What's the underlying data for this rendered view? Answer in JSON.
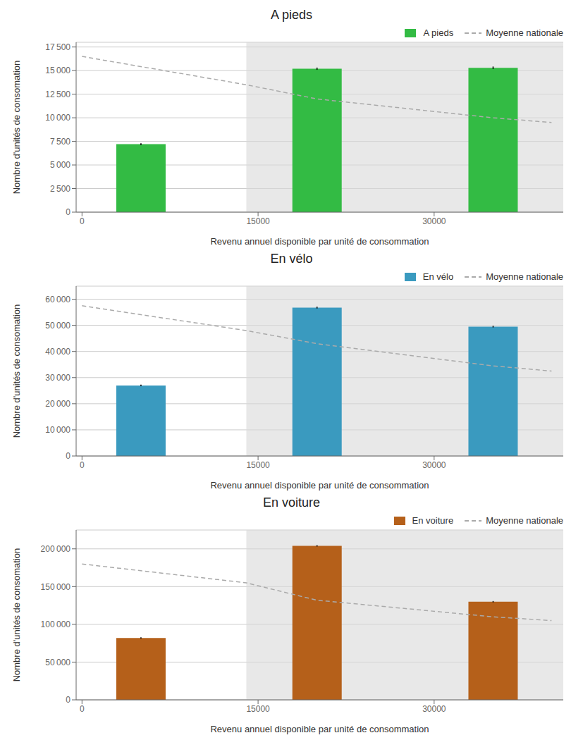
{
  "chart_data": [
    {
      "type": "bar",
      "title": "A pieds",
      "xlabel": "Revenu annuel disponible par unité de consommation",
      "ylabel": "Nombre d'unités de consomation",
      "series": [
        {
          "name": "A pieds",
          "type": "bar",
          "color": "#33bb44",
          "x": [
            5000,
            20000,
            35000
          ],
          "values": [
            7200,
            15200,
            15300
          ],
          "errors": [
            100,
            120,
            130
          ]
        },
        {
          "name": "Moyenne nationale",
          "type": "line",
          "line_style": "dashed",
          "color": "#aaaaaa",
          "x": [
            0,
            14000,
            20000,
            35000,
            40000
          ],
          "values": [
            16500,
            13500,
            12000,
            10000,
            9500
          ]
        }
      ],
      "span": {
        "x": [
          14000,
          41000
        ],
        "color": "#d8d8d8"
      },
      "xlim": [
        -500,
        41000
      ],
      "xticks": [
        0,
        15000,
        30000
      ],
      "ylim": [
        0,
        18000
      ],
      "yticks": [
        0,
        {
          "value": 2500,
          "label": "2 500"
        },
        {
          "value": 5000,
          "label": "5 000"
        },
        {
          "value": 7500,
          "label": "7 500"
        },
        {
          "value": 10000,
          "label": "10 000"
        },
        {
          "value": 12500,
          "label": "12 500"
        },
        {
          "value": 15000,
          "label": "15 000"
        },
        {
          "value": 17500,
          "label": "17 500"
        }
      ],
      "grid": true,
      "legend": "upper right"
    },
    {
      "type": "bar",
      "title": "En vélo",
      "xlabel": "Revenu annuel disponible par unité de consommation",
      "ylabel": "Nombre d'unités de consomation",
      "series": [
        {
          "name": "En vélo",
          "type": "bar",
          "color": "#3a9abf",
          "x": [
            5000,
            20000,
            35000
          ],
          "values": [
            27000,
            56800,
            49500
          ],
          "errors": [
            300,
            350,
            300
          ]
        },
        {
          "name": "Moyenne nationale",
          "type": "line",
          "line_style": "dashed",
          "color": "#aaaaaa",
          "x": [
            0,
            14000,
            20000,
            35000,
            40000
          ],
          "values": [
            57500,
            48000,
            43000,
            34500,
            32500
          ]
        }
      ],
      "span": {
        "x": [
          14000,
          41000
        ],
        "color": "#d8d8d8"
      },
      "xlim": [
        -500,
        41000
      ],
      "xticks": [
        0,
        15000,
        30000
      ],
      "ylim": [
        0,
        65000
      ],
      "yticks": [
        0,
        {
          "value": 10000,
          "label": "10 000"
        },
        {
          "value": 20000,
          "label": "20 000"
        },
        {
          "value": 30000,
          "label": "30 000"
        },
        {
          "value": 40000,
          "label": "40 000"
        },
        {
          "value": 50000,
          "label": "50 000"
        },
        {
          "value": 60000,
          "label": "60 000"
        }
      ],
      "grid": true,
      "legend": "upper right"
    },
    {
      "type": "bar",
      "title": "En voiture",
      "xlabel": "Revenu annuel disponible par unité de consommation",
      "ylabel": "Nombre d'unités de consomation",
      "series": [
        {
          "name": "En voiture",
          "type": "bar",
          "color": "#b5601a",
          "x": [
            5000,
            20000,
            35000
          ],
          "values": [
            82000,
            204000,
            130000
          ],
          "errors": [
            800,
            900,
            850
          ]
        },
        {
          "name": "Moyenne nationale",
          "type": "line",
          "line_style": "dashed",
          "color": "#aaaaaa",
          "x": [
            0,
            14000,
            20000,
            35000,
            40000
          ],
          "values": [
            180000,
            155000,
            132000,
            110000,
            105000
          ]
        }
      ],
      "span": {
        "x": [
          14000,
          41000
        ],
        "color": "#d8d8d8"
      },
      "xlim": [
        -500,
        41000
      ],
      "xticks": [
        0,
        15000,
        30000
      ],
      "ylim": [
        0,
        225000
      ],
      "yticks": [
        0,
        {
          "value": 50000,
          "label": "50 000"
        },
        {
          "value": 100000,
          "label": "100 000"
        },
        {
          "value": 150000,
          "label": "150 000"
        },
        {
          "value": 200000,
          "label": "200 000"
        }
      ],
      "grid": true,
      "legend": "upper right"
    }
  ]
}
